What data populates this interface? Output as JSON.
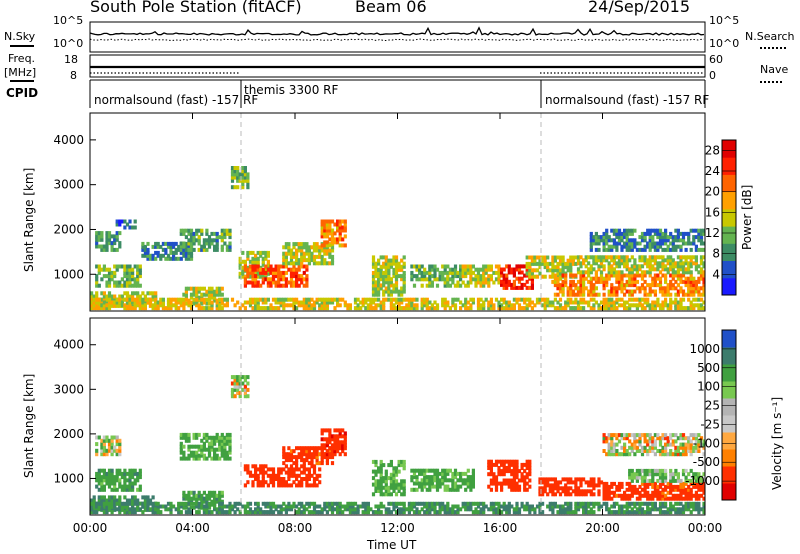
{
  "header": {
    "station": "South Pole Station (fitACF)",
    "beam": "Beam 06",
    "date": "24/Sep/2015"
  },
  "noise_panel": {
    "left_label": "N.Sky",
    "right_label": "N.Search",
    "ticks": [
      "10^5",
      "10^0"
    ]
  },
  "freq_panel": {
    "left_label_line1": "Freq.",
    "left_label_line2": "[MHz]",
    "right_label": "Nave",
    "left_ticks": [
      "18",
      "8"
    ],
    "right_ticks": [
      "60",
      "0"
    ]
  },
  "cpid_panel": {
    "label": "CPID",
    "segments": [
      "normalsound (fast) -157 RF",
      "themis 3300 RF",
      "normalsound (fast) -157 RF"
    ]
  },
  "colors": {
    "power_scale": [
      "#1a1aff",
      "#2050c8",
      "#3c8c64",
      "#64b450",
      "#c8c800",
      "#ffa000",
      "#ff6400",
      "#ff2000",
      "#e00000"
    ],
    "velocity_scale": [
      "#e00000",
      "#ff3000",
      "#ff8000",
      "#ffa840",
      "#c8c8c8",
      "#b4b4b4",
      "#78c850",
      "#40a040",
      "#3c7c6c",
      "#2050c8"
    ]
  },
  "chart_data": [
    {
      "type": "heatmap",
      "panel": "power",
      "ylabel": "Slant Range [km]",
      "yticks": [
        "4000",
        "3000",
        "2000",
        "1000"
      ],
      "ylim": [
        180,
        4600
      ],
      "xlim": [
        0,
        24
      ],
      "xticks": [
        "00:00",
        "04:00",
        "08:00",
        "12:00",
        "16:00",
        "20:00",
        "00:00"
      ],
      "colorbar_label": "Power [dB]",
      "colorbar_ticks": [
        "28",
        "24",
        "20",
        "16",
        "12",
        "8",
        "4"
      ],
      "colorbar_range": [
        0,
        30
      ],
      "regions": [
        {
          "x": [
            0.2,
            1.2
          ],
          "y": [
            1500,
            1950
          ],
          "v": 9
        },
        {
          "x": [
            1.0,
            1.8
          ],
          "y": [
            2000,
            2200
          ],
          "v": 5
        },
        {
          "x": [
            0.2,
            2.0
          ],
          "y": [
            700,
            1200
          ],
          "v": 12
        },
        {
          "x": [
            0.0,
            2.6
          ],
          "y": [
            250,
            600
          ],
          "v": 14
        },
        {
          "x": [
            2.0,
            4.0
          ],
          "y": [
            1300,
            1700
          ],
          "v": 8
        },
        {
          "x": [
            3.5,
            5.5
          ],
          "y": [
            1500,
            2000
          ],
          "v": 10
        },
        {
          "x": [
            3.6,
            5.2
          ],
          "y": [
            300,
            700
          ],
          "v": 14
        },
        {
          "x": [
            5.5,
            6.2
          ],
          "y": [
            2900,
            3400
          ],
          "v": 11
        },
        {
          "x": [
            5.8,
            7.0
          ],
          "y": [
            900,
            1500
          ],
          "v": 14
        },
        {
          "x": [
            6.0,
            8.5
          ],
          "y": [
            700,
            1200
          ],
          "v": 23
        },
        {
          "x": [
            7.5,
            9.5
          ],
          "y": [
            1200,
            1700
          ],
          "v": 14
        },
        {
          "x": [
            9.0,
            10.0
          ],
          "y": [
            1600,
            2200
          ],
          "v": 20
        },
        {
          "x": [
            11.0,
            12.3
          ],
          "y": [
            500,
            1400
          ],
          "v": 14
        },
        {
          "x": [
            12.5,
            14.5
          ],
          "y": [
            700,
            1200
          ],
          "v": 12
        },
        {
          "x": [
            14.5,
            16.0
          ],
          "y": [
            700,
            1200
          ],
          "v": 15
        },
        {
          "x": [
            16.0,
            17.3
          ],
          "y": [
            650,
            1200
          ],
          "v": 26
        },
        {
          "x": [
            17.0,
            19.0
          ],
          "y": [
            900,
            1400
          ],
          "v": 15
        },
        {
          "x": [
            18.0,
            24.0
          ],
          "y": [
            500,
            1000
          ],
          "v": 20
        },
        {
          "x": [
            19.0,
            24.0
          ],
          "y": [
            1000,
            1400
          ],
          "v": 14
        },
        {
          "x": [
            19.5,
            24.0
          ],
          "y": [
            1500,
            2000
          ],
          "v": 8
        },
        {
          "x": [
            0.0,
            24.0
          ],
          "y": [
            200,
            450
          ],
          "v": 16
        }
      ]
    },
    {
      "type": "heatmap",
      "panel": "velocity",
      "ylabel": "Slant Range [km]",
      "yticks": [
        "4000",
        "3000",
        "2000",
        "1000"
      ],
      "ylim": [
        180,
        4600
      ],
      "xlim": [
        0,
        24
      ],
      "xticks": [
        "00:00",
        "04:00",
        "08:00",
        "12:00",
        "16:00",
        "20:00",
        "00:00"
      ],
      "xlabel": "Time UT",
      "colorbar_label": "Velocity [m s⁻¹]",
      "colorbar_ticks": [
        "1000",
        "500",
        "100",
        "25",
        "-25",
        "-100",
        "-500",
        "-1000"
      ],
      "colorbar_range": [
        -1000,
        1000
      ],
      "regions": [
        {
          "x": [
            0.2,
            1.2
          ],
          "y": [
            1500,
            1950
          ],
          "v": 30
        },
        {
          "x": [
            0.2,
            2.0
          ],
          "y": [
            700,
            1200
          ],
          "v": 200
        },
        {
          "x": [
            0.0,
            2.6
          ],
          "y": [
            250,
            600
          ],
          "v": 300
        },
        {
          "x": [
            3.5,
            5.5
          ],
          "y": [
            1400,
            2000
          ],
          "v": 150
        },
        {
          "x": [
            3.6,
            5.2
          ],
          "y": [
            300,
            700
          ],
          "v": 200
        },
        {
          "x": [
            5.5,
            6.2
          ],
          "y": [
            2800,
            3300
          ],
          "v": 10
        },
        {
          "x": [
            6.0,
            9.0
          ],
          "y": [
            800,
            1300
          ],
          "v": -300
        },
        {
          "x": [
            7.5,
            9.5
          ],
          "y": [
            1300,
            1700
          ],
          "v": -200
        },
        {
          "x": [
            9.0,
            10.0
          ],
          "y": [
            1500,
            2100
          ],
          "v": -400
        },
        {
          "x": [
            11.0,
            12.3
          ],
          "y": [
            600,
            1400
          ],
          "v": 150
        },
        {
          "x": [
            12.5,
            15.0
          ],
          "y": [
            700,
            1200
          ],
          "v": 150
        },
        {
          "x": [
            15.5,
            17.2
          ],
          "y": [
            700,
            1400
          ],
          "v": -300
        },
        {
          "x": [
            17.5,
            20.0
          ],
          "y": [
            600,
            1000
          ],
          "v": -300
        },
        {
          "x": [
            20.0,
            24.0
          ],
          "y": [
            500,
            900
          ],
          "v": -200
        },
        {
          "x": [
            21.0,
            24.0
          ],
          "y": [
            900,
            1200
          ],
          "v": 100
        },
        {
          "x": [
            20.0,
            24.0
          ],
          "y": [
            1500,
            2000
          ],
          "v": 5
        },
        {
          "x": [
            0.0,
            24.0
          ],
          "y": [
            200,
            450
          ],
          "v": 300
        }
      ]
    }
  ]
}
